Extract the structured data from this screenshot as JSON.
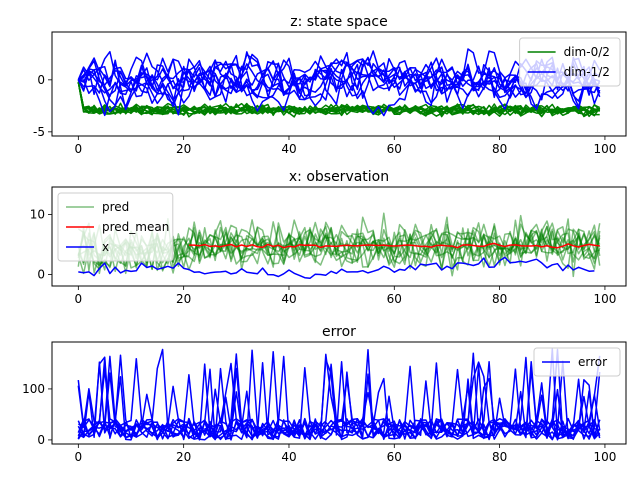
{
  "chart_data": [
    {
      "type": "line",
      "title": "z: state space",
      "xlim": [
        -5,
        104
      ],
      "ylim": [
        -5.4,
        4.6
      ],
      "xticks": [
        0,
        20,
        40,
        60,
        80,
        100
      ],
      "yticks": [
        -5,
        0
      ],
      "grid": false,
      "legend_position": "upper-right",
      "series_groups": [
        {
          "name": "dim-0/2",
          "color": "#008000",
          "count": 10,
          "generator": "level",
          "level": -2.9,
          "spread": 0.6,
          "start": -0.2,
          "x_start": 0,
          "x_end": 99
        },
        {
          "name": "dim-1/2",
          "color": "#0000ff",
          "count": 10,
          "generator": "walk",
          "level": 0.1,
          "spread": 1.4,
          "start": 0.0,
          "x_start": 0,
          "x_end": 99
        }
      ],
      "legend": [
        {
          "label": "dim-0/2",
          "color": "#008000"
        },
        {
          "label": "dim-1/2",
          "color": "#0000ff"
        }
      ]
    },
    {
      "type": "line",
      "title": "x: observation",
      "xlim": [
        -5,
        104
      ],
      "ylim": [
        -1.9,
        14.6
      ],
      "xticks": [
        0,
        20,
        40,
        60,
        80,
        100
      ],
      "yticks": [
        0,
        10
      ],
      "grid": false,
      "legend_position": "upper-left",
      "series_groups": [
        {
          "name": "pred",
          "color": "#008000",
          "alpha": 0.5,
          "count": 10,
          "generator": "noise",
          "level": 4.9,
          "spread": 2.7,
          "x_start": 0,
          "x_end": 99
        },
        {
          "name": "pred_mean",
          "color": "#ff0000",
          "count": 1,
          "generator": "mean",
          "level": 4.8,
          "spread": 0.2,
          "x_start": 21,
          "x_end": 99
        },
        {
          "name": "x",
          "color": "#0000ff",
          "count": 1,
          "generator": "x",
          "level": 0.5,
          "spread": 0.6,
          "x_start": 0,
          "x_end": 98
        }
      ],
      "legend": [
        {
          "label": "pred",
          "color": "#008000",
          "alpha": 0.5
        },
        {
          "label": "pred_mean",
          "color": "#ff0000"
        },
        {
          "label": "x",
          "color": "#0000ff"
        }
      ]
    },
    {
      "type": "line",
      "title": "error",
      "xlim": [
        -5,
        104
      ],
      "ylim": [
        -8,
        192
      ],
      "xticks": [
        0,
        20,
        40,
        60,
        80,
        100
      ],
      "yticks": [
        0,
        100
      ],
      "grid": false,
      "legend_position": "upper-right",
      "series_groups": [
        {
          "name": "error",
          "color": "#0000ff",
          "count": 10,
          "generator": "error",
          "level": 22,
          "spread": 18,
          "x_start": 0,
          "x_end": 99
        }
      ],
      "legend": [
        {
          "label": "error",
          "color": "#0000ff"
        }
      ]
    }
  ]
}
